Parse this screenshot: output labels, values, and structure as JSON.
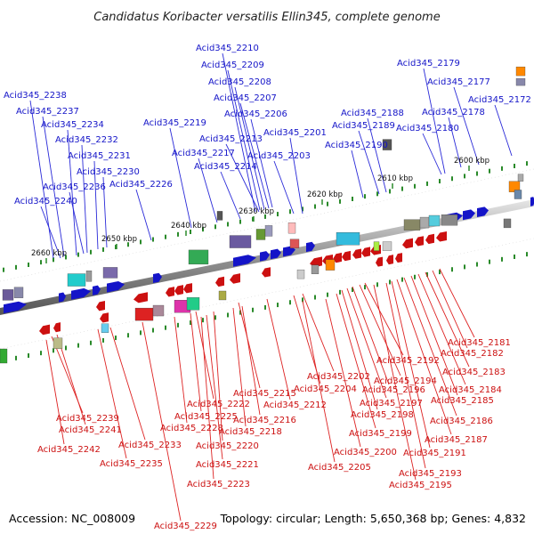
{
  "title": "Candidatus Koribacter versatilis Ellin345, complete genome",
  "footer": {
    "accession": "Accession: NC_008009",
    "summary": "Topology: circular; Length: 5,650,368 bp; Genes: 4,832"
  },
  "scale_labels": [
    "2600 kbp",
    "2610 kbp",
    "2620 kbp",
    "2630 kbp",
    "2640 kbp",
    "2650 kbp",
    "2660 kbp"
  ],
  "colors": {
    "forward_strand": "#1414c8",
    "reverse_strand": "#cc1010",
    "backbone": "#888888",
    "tick": "#2a8a2a"
  },
  "top_labels": [
    "Acid345_2210",
    "Acid345_2209",
    "Acid345_2208",
    "Acid345_2207",
    "Acid345_2206",
    "Acid345_2219",
    "Acid345_2213",
    "Acid345_2201",
    "Acid345_2217",
    "Acid345_2203",
    "Acid345_2214",
    "Acid345_2226",
    "Acid345_2238",
    "Acid345_2237",
    "Acid345_2234",
    "Acid345_2232",
    "Acid345_2231",
    "Acid345_2230",
    "Acid345_2236",
    "Acid345_2240",
    "Acid345_2179",
    "Acid345_2177",
    "Acid345_2172",
    "Acid345_2188",
    "Acid345_2178",
    "Acid345_2189",
    "Acid345_2180",
    "Acid345_2190"
  ],
  "bottom_labels": [
    "Acid345_2181",
    "Acid345_2182",
    "Acid345_2183",
    "Acid345_2192",
    "Acid345_2184",
    "Acid345_2202",
    "Acid345_2194",
    "Acid345_2185",
    "Acid345_2204",
    "Acid345_2196",
    "Acid345_2215",
    "Acid345_2197",
    "Acid345_2186",
    "Acid345_2222",
    "Acid345_2212",
    "Acid345_2198",
    "Acid345_2225",
    "Acid345_2216",
    "Acid345_2239",
    "Acid345_2228",
    "Acid345_2187",
    "Acid345_2218",
    "Acid345_2199",
    "Acid345_2241",
    "Acid345_2233",
    "Acid345_2220",
    "Acid345_2191",
    "Acid345_2242",
    "Acid345_2200",
    "Acid345_2205",
    "Acid345_2221",
    "Acid345_2235",
    "Acid345_2193",
    "Acid345_2223",
    "Acid345_2195",
    "Acid345_2229"
  ]
}
